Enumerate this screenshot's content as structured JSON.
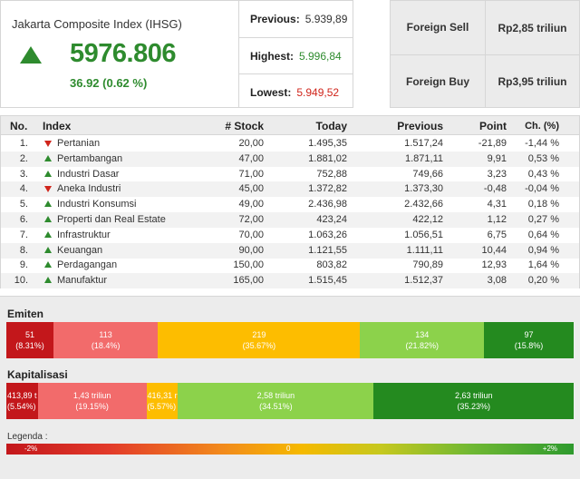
{
  "summary": {
    "title": "Jakarta Composite Index (IHSG)",
    "value": "5976.806",
    "change": "36.92 (0.62 %)",
    "previous_label": "Previous:",
    "previous_value": "5.939,89",
    "highest_label": "Highest:",
    "highest_value": "5.996,84",
    "lowest_label": "Lowest:",
    "lowest_value": "5.949,52"
  },
  "foreign": {
    "sell_label": "Foreign Sell",
    "sell_value": "Rp2,85 triliun",
    "buy_label": "Foreign Buy",
    "buy_value": "Rp3,95 triliun"
  },
  "table": {
    "headers": {
      "no": "No.",
      "index": "Index",
      "stock": "# Stock",
      "today": "Today",
      "previous": "Previous",
      "point": "Point",
      "change": "Ch. (%)"
    },
    "rows": [
      {
        "no": "1.",
        "dir": "down",
        "name": "Pertanian",
        "stock": "20,00",
        "today": "1.495,35",
        "previous": "1.517,24",
        "point": "-21,89",
        "change": "-1,44 %"
      },
      {
        "no": "2.",
        "dir": "up",
        "name": "Pertambangan",
        "stock": "47,00",
        "today": "1.881,02",
        "previous": "1.871,11",
        "point": "9,91",
        "change": "0,53 %"
      },
      {
        "no": "3.",
        "dir": "up",
        "name": "Industri Dasar",
        "stock": "71,00",
        "today": "752,88",
        "previous": "749,66",
        "point": "3,23",
        "change": "0,43 %"
      },
      {
        "no": "4.",
        "dir": "down",
        "name": "Aneka Industri",
        "stock": "45,00",
        "today": "1.372,82",
        "previous": "1.373,30",
        "point": "-0,48",
        "change": "-0,04 %"
      },
      {
        "no": "5.",
        "dir": "up",
        "name": "Industri Konsumsi",
        "stock": "49,00",
        "today": "2.436,98",
        "previous": "2.432,66",
        "point": "4,31",
        "change": "0,18 %"
      },
      {
        "no": "6.",
        "dir": "up",
        "name": "Properti dan Real Estate",
        "stock": "72,00",
        "today": "423,24",
        "previous": "422,12",
        "point": "1,12",
        "change": "0,27 %"
      },
      {
        "no": "7.",
        "dir": "up",
        "name": "Infrastruktur",
        "stock": "70,00",
        "today": "1.063,26",
        "previous": "1.056,51",
        "point": "6,75",
        "change": "0,64 %"
      },
      {
        "no": "8.",
        "dir": "up",
        "name": "Keuangan",
        "stock": "90,00",
        "today": "1.121,55",
        "previous": "1.111,11",
        "point": "10,44",
        "change": "0,94 %"
      },
      {
        "no": "9.",
        "dir": "up",
        "name": "Perdagangan",
        "stock": "150,00",
        "today": "803,82",
        "previous": "790,89",
        "point": "12,93",
        "change": "1,64 %"
      },
      {
        "no": "10.",
        "dir": "up",
        "name": "Manufaktur",
        "stock": "165,00",
        "today": "1.515,45",
        "previous": "1.512,37",
        "point": "3,08",
        "change": "0,20 %"
      }
    ]
  },
  "emiten": {
    "title": "Emiten",
    "segments": [
      {
        "value": "51",
        "pct": "(8.31%)",
        "share": 8.31,
        "color": "#c3171b"
      },
      {
        "value": "113",
        "pct": "(18.4%)",
        "share": 18.4,
        "color": "#f26b6b"
      },
      {
        "value": "219",
        "pct": "(35.67%)",
        "share": 35.67,
        "color": "#fdbd00"
      },
      {
        "value": "134",
        "pct": "(21.82%)",
        "share": 21.82,
        "color": "#8cd24b"
      },
      {
        "value": "97",
        "pct": "(15.8%)",
        "share": 15.8,
        "color": "#248a1f"
      }
    ]
  },
  "kapitalisasi": {
    "title": "Kapitalisasi",
    "segments": [
      {
        "value": "413,89 t",
        "pct": "(5.54%)",
        "share": 5.54,
        "color": "#c3171b"
      },
      {
        "value": "1,43 triliun",
        "pct": "(19.15%)",
        "share": 19.15,
        "color": "#f26b6b"
      },
      {
        "value": "416,31 r",
        "pct": "(5.57%)",
        "share": 5.57,
        "color": "#fdbd00"
      },
      {
        "value": "2,58 triliun",
        "pct": "(34.51%)",
        "share": 34.51,
        "color": "#8cd24b"
      },
      {
        "value": "2,63 triliun",
        "pct": "(35.23%)",
        "share": 35.23,
        "color": "#248a1f"
      }
    ]
  },
  "legend": {
    "title": "Legenda :",
    "min": "-2%",
    "mid": "0",
    "max": "+2%"
  },
  "colors": {
    "up": "#2e8b2e",
    "down": "#d0251b"
  },
  "icons": {
    "up": "triangle-up-icon",
    "down": "triangle-down-icon"
  }
}
